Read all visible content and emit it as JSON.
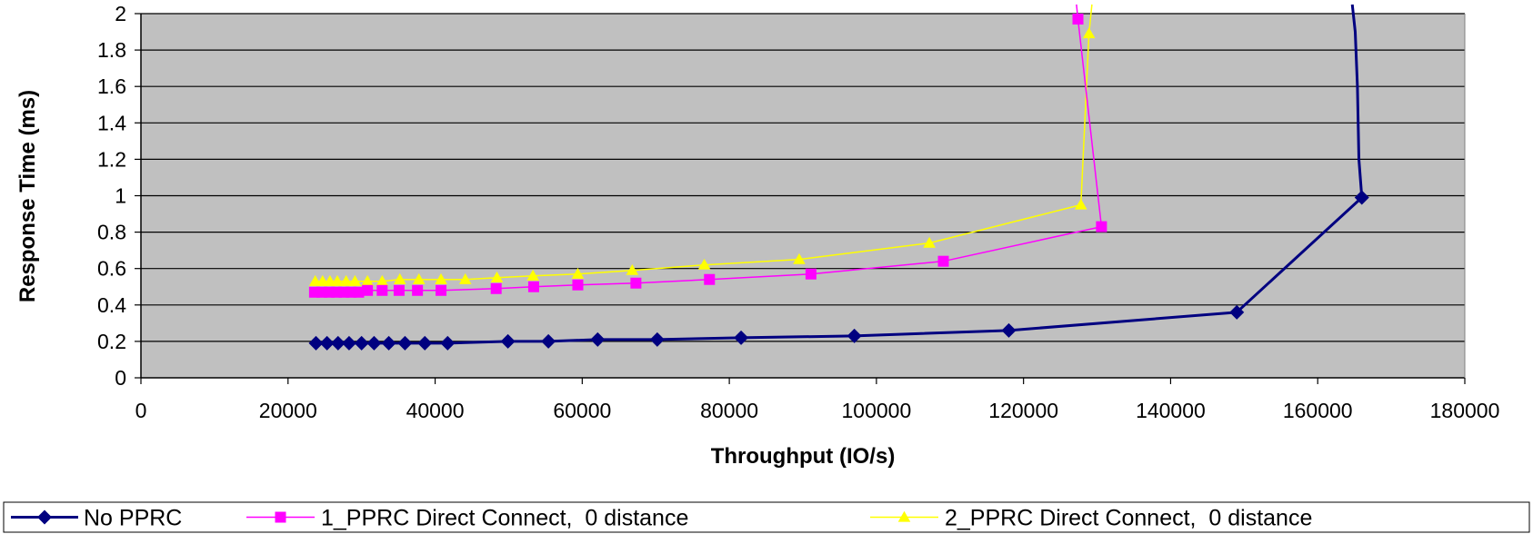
{
  "chart_data": {
    "type": "line",
    "title": "",
    "xlabel": "Throughput (IO/s)",
    "ylabel": "Response Time (ms)",
    "xlim": [
      0,
      180000
    ],
    "ylim": [
      0,
      2
    ],
    "x_ticks": [
      0,
      20000,
      40000,
      60000,
      80000,
      100000,
      120000,
      140000,
      160000,
      180000
    ],
    "x_tick_labels": [
      "0",
      "20000",
      "40000",
      "60000",
      "80000",
      "100000",
      "120000",
      "140000",
      "160000",
      "180000"
    ],
    "y_ticks": [
      0,
      0.2,
      0.4,
      0.6,
      0.8,
      1,
      1.2,
      1.4,
      1.6,
      1.8,
      2
    ],
    "y_tick_labels": [
      "0",
      "0.2",
      "0.4",
      "0.6",
      "0.8",
      "1",
      "1.2",
      "1.4",
      "1.6",
      "1.8",
      "2"
    ],
    "grid": "horizontal",
    "plot_background": "#C0C0C0",
    "legend_position": "bottom",
    "series": [
      {
        "name": "No PPRC",
        "color": "#000080",
        "marker": "diamond",
        "points": [
          [
            23800,
            0.19
          ],
          [
            25300,
            0.19
          ],
          [
            26800,
            0.19
          ],
          [
            28300,
            0.19
          ],
          [
            30000,
            0.19
          ],
          [
            31700,
            0.19
          ],
          [
            33700,
            0.19
          ],
          [
            35900,
            0.19
          ],
          [
            38600,
            0.19
          ],
          [
            41700,
            0.19
          ],
          [
            49900,
            0.2
          ],
          [
            55400,
            0.2
          ],
          [
            62100,
            0.21
          ],
          [
            70200,
            0.21
          ],
          [
            81600,
            0.22
          ],
          [
            97000,
            0.23
          ],
          [
            118000,
            0.26
          ],
          [
            149000,
            0.36
          ],
          [
            166000,
            0.99
          ]
        ],
        "tail": [
          [
            166000,
            0.99
          ],
          [
            165600,
            1.2
          ],
          [
            165400,
            1.6
          ],
          [
            165100,
            1.9
          ],
          [
            164700,
            2.05
          ]
        ]
      },
      {
        "name": "1_PPRC Direct Connect,  0 distance",
        "color": "#FF00FF",
        "marker": "square",
        "points": [
          [
            23600,
            0.47
          ],
          [
            24600,
            0.47
          ],
          [
            25600,
            0.47
          ],
          [
            26600,
            0.47
          ],
          [
            27600,
            0.47
          ],
          [
            28600,
            0.47
          ],
          [
            29600,
            0.47
          ],
          [
            30800,
            0.48
          ],
          [
            32800,
            0.48
          ],
          [
            35100,
            0.48
          ],
          [
            37600,
            0.48
          ],
          [
            40800,
            0.48
          ],
          [
            48300,
            0.49
          ],
          [
            53400,
            0.5
          ],
          [
            59400,
            0.51
          ],
          [
            67300,
            0.52
          ],
          [
            77300,
            0.54
          ],
          [
            91100,
            0.57
          ],
          [
            109100,
            0.64
          ],
          [
            130600,
            0.83
          ],
          [
            127400,
            1.97
          ]
        ],
        "tail": [
          [
            127400,
            1.97
          ],
          [
            127200,
            2.05
          ]
        ]
      },
      {
        "name": "2_PPRC Direct Connect,  0 distance",
        "color": "#FFFF00",
        "marker": "triangle",
        "points": [
          [
            23700,
            0.53
          ],
          [
            24700,
            0.53
          ],
          [
            25700,
            0.53
          ],
          [
            26700,
            0.53
          ],
          [
            27900,
            0.53
          ],
          [
            29100,
            0.53
          ],
          [
            30800,
            0.53
          ],
          [
            32800,
            0.53
          ],
          [
            35200,
            0.54
          ],
          [
            37800,
            0.54
          ],
          [
            40800,
            0.54
          ],
          [
            44100,
            0.54
          ],
          [
            48400,
            0.55
          ],
          [
            53300,
            0.56
          ],
          [
            59400,
            0.57
          ],
          [
            66800,
            0.59
          ],
          [
            76600,
            0.62
          ],
          [
            89500,
            0.65
          ],
          [
            107200,
            0.74
          ],
          [
            127800,
            0.95
          ],
          [
            128900,
            1.89
          ]
        ],
        "tail": [
          [
            128900,
            1.89
          ],
          [
            129300,
            2.05
          ]
        ]
      }
    ]
  }
}
